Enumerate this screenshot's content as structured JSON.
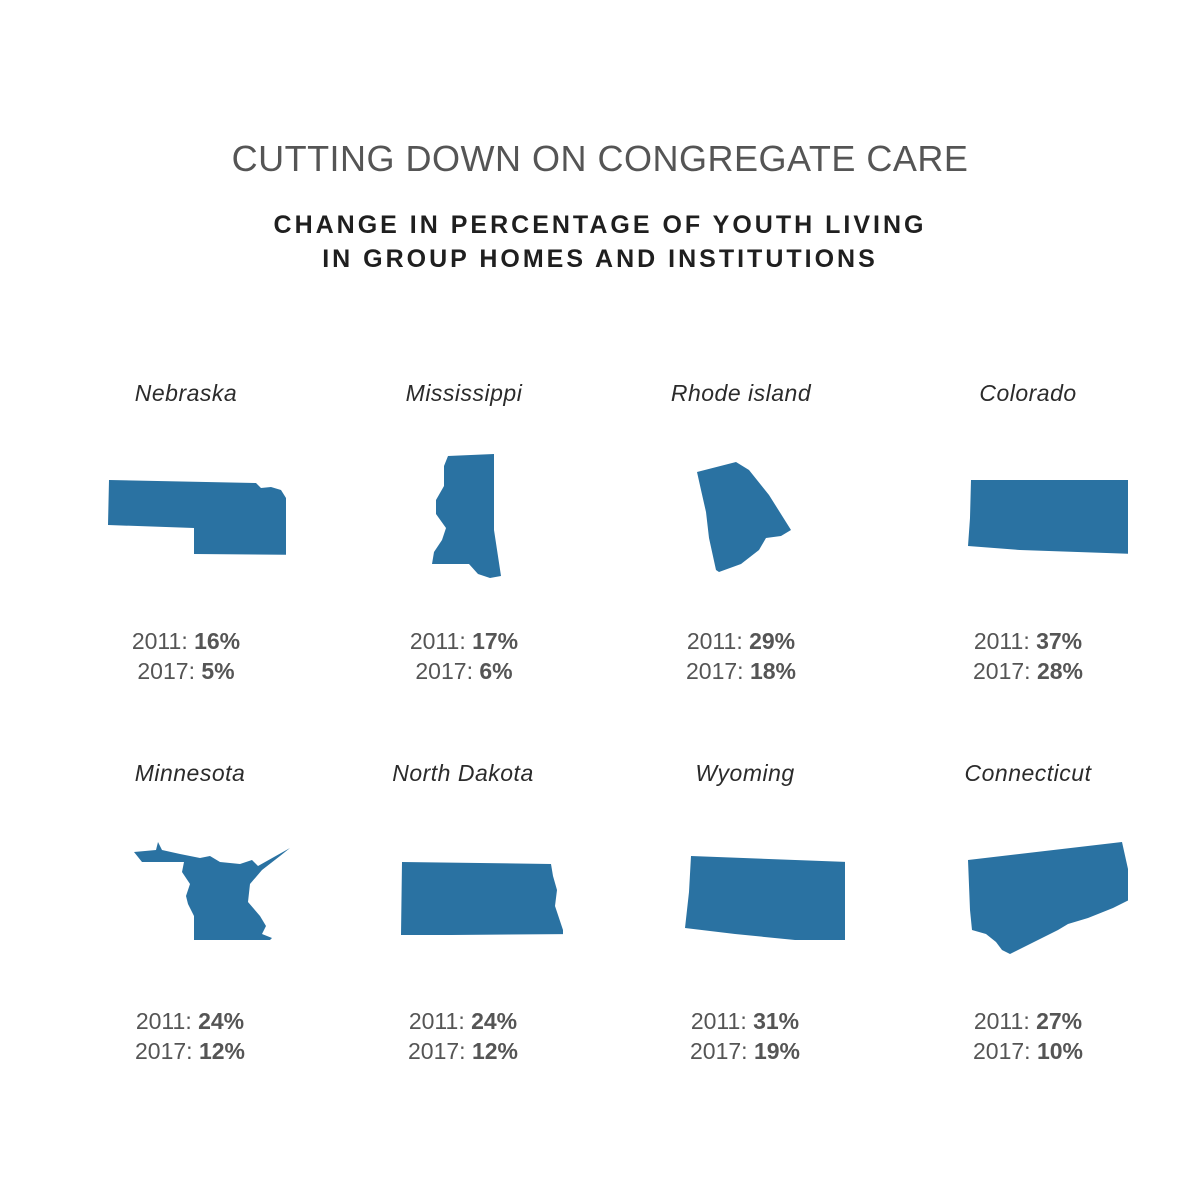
{
  "title": "CUTTING DOWN ON CONGREGATE CARE",
  "subtitle_lines": [
    "CHANGE IN PERCENTAGE OF YOUTH LIVING",
    "IN GROUP HOMES AND INSTITUTIONS"
  ],
  "colors": {
    "state_fill": "#2a72a2",
    "title": "#555555",
    "subtitle": "#1f1f1f"
  },
  "chart_data": {
    "type": "table",
    "title": "CUTTING DOWN ON CONGREGATE CARE",
    "subtitle": "CHANGE IN PERCENTAGE OF YOUTH LIVING IN GROUP HOMES AND INSTITUTIONS",
    "columns": [
      "2011",
      "2017"
    ],
    "states": [
      {
        "name": "Nebraska",
        "icon": "nebraska-shape",
        "values": {
          "2011": "16%",
          "2017": "5%"
        }
      },
      {
        "name": "Mississippi",
        "icon": "mississippi-shape",
        "values": {
          "2011": "17%",
          "2017": "6%"
        }
      },
      {
        "name": "Rhode island",
        "icon": "rhode-island-shape",
        "values": {
          "2011": "29%",
          "2017": "18%"
        }
      },
      {
        "name": "Colorado",
        "icon": "colorado-shape",
        "values": {
          "2011": "37%",
          "2017": "28%"
        }
      },
      {
        "name": "Minnesota",
        "icon": "minnesota-shape",
        "values": {
          "2011": "24%",
          "2017": "12%"
        }
      },
      {
        "name": "North Dakota",
        "icon": "north-dakota-shape",
        "values": {
          "2011": "24%",
          "2017": "12%"
        }
      },
      {
        "name": "Wyoming",
        "icon": "wyoming-shape",
        "values": {
          "2011": "31%",
          "2017": "19%"
        }
      },
      {
        "name": "Connecticut",
        "icon": "connecticut-shape",
        "values": {
          "2011": "27%",
          "2017": "10%"
        }
      }
    ]
  }
}
